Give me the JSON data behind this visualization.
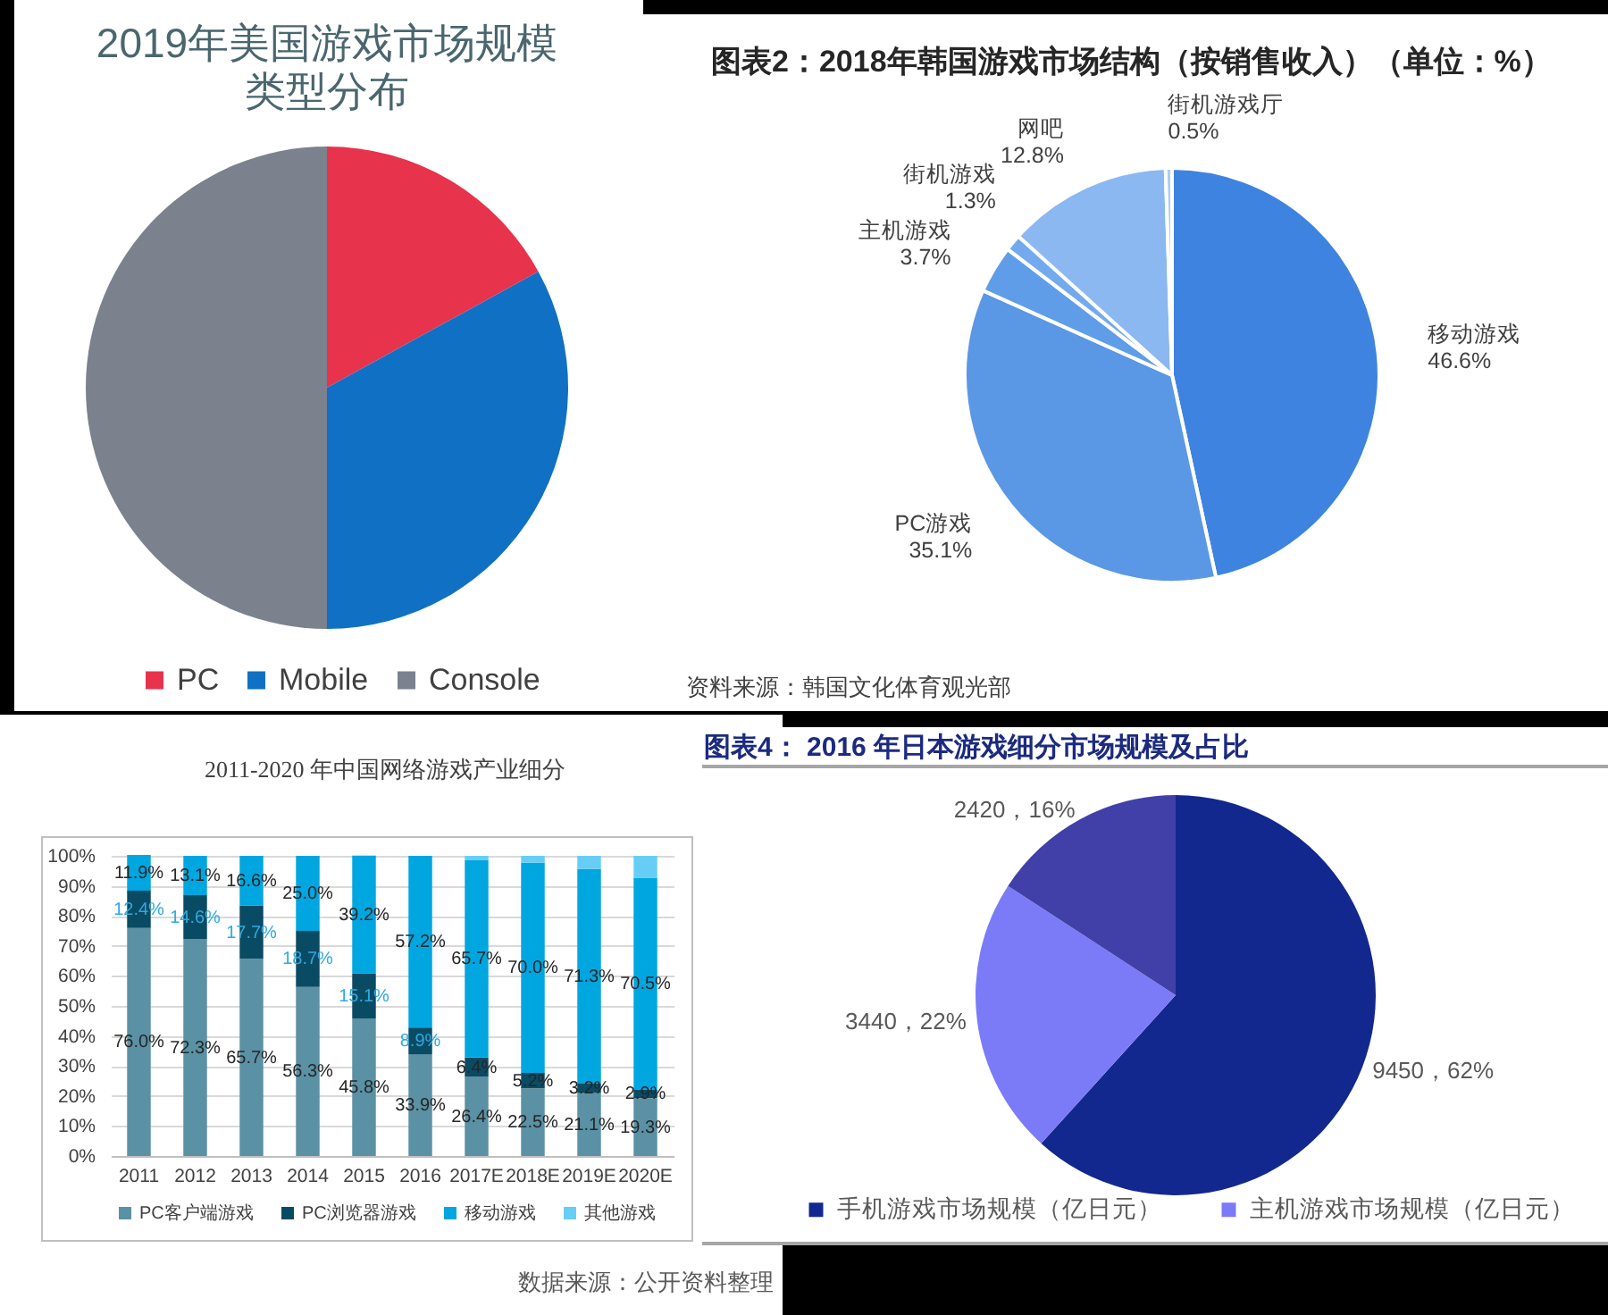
{
  "chart_data": [
    {
      "type": "pie",
      "title": "2019年美国游戏市场规模类型分布",
      "categories": [
        "PC",
        "Mobile",
        "Console"
      ],
      "values": [
        17,
        33,
        50
      ],
      "colors": [
        "#e8334d",
        "#1070c4",
        "#7b818d"
      ],
      "legend": "bottom"
    },
    {
      "type": "pie",
      "title": "图表2：2018年韩国游戏市场结构（按销售收入）（单位：%）",
      "categories": [
        "移动游戏",
        "PC游戏",
        "主机游戏",
        "街机游戏",
        "网吧",
        "街机游戏厅"
      ],
      "values": [
        46.6,
        35.1,
        3.7,
        1.3,
        12.8,
        0.5
      ],
      "colors": [
        "#3f83e0",
        "#5a98e6",
        "#5f9de8",
        "#73aaed",
        "#8bb8f0",
        "#a9ccf4"
      ],
      "value_labels": [
        "46.6%",
        "35.1%",
        "3.7%",
        "1.3%",
        "12.8%",
        "0.5%"
      ],
      "annotations": [
        "资料来源：韩国文化体育观光部"
      ]
    },
    {
      "type": "bar",
      "stacked": true,
      "title": "2011-2020 年中国网络游戏产业细分",
      "categories": [
        "2011",
        "2012",
        "2013",
        "2014",
        "2015",
        "2016",
        "2017E",
        "2018E",
        "2019E",
        "2020E"
      ],
      "series": [
        {
          "name": "PC客户端游戏",
          "color": "#5a91a5",
          "values": [
            76.0,
            72.3,
            65.7,
            56.3,
            45.8,
            33.9,
            26.4,
            22.5,
            21.1,
            19.3
          ],
          "value_labels": [
            "76.0%",
            "72.3%",
            "65.7%",
            "56.3%",
            "45.8%",
            "33.9%",
            "26.4%",
            "22.5%",
            "21.1%",
            "19.3%"
          ]
        },
        {
          "name": "PC浏览器游戏",
          "color": "#0a4b64",
          "values": [
            12.4,
            14.6,
            17.7,
            18.7,
            15.1,
            8.9,
            6.4,
            5.2,
            3.2,
            2.9
          ],
          "value_labels": [
            "12.4%",
            "14.6%",
            "17.7%",
            "18.7%",
            "15.1%",
            "8.9%",
            "6.4%",
            "5.2%",
            "3.2%",
            "2.9%"
          ]
        },
        {
          "name": "移动游戏",
          "color": "#00a6e0",
          "values": [
            11.9,
            13.1,
            16.6,
            25.0,
            39.2,
            57.2,
            65.7,
            70.0,
            71.3,
            70.5
          ],
          "value_labels": [
            "11.9%",
            "13.1%",
            "16.6%",
            "25.0%",
            "39.2%",
            "57.2%",
            "65.7%",
            "70.0%",
            "71.3%",
            "70.5%"
          ]
        },
        {
          "name": "其他游戏",
          "color": "#66cef5",
          "values": [
            0,
            0,
            0,
            0,
            0,
            0,
            1.5,
            2.3,
            4.4,
            7.3
          ]
        }
      ],
      "ylim": [
        0,
        100
      ],
      "yticks": [
        {
          "value": 0,
          "label": "0%"
        },
        {
          "value": 10,
          "label": "10%"
        },
        {
          "value": 20,
          "label": "20%"
        },
        {
          "value": 30,
          "label": "30%"
        },
        {
          "value": 40,
          "label": "40%"
        },
        {
          "value": 50,
          "label": "50%"
        },
        {
          "value": 60,
          "label": "60%"
        },
        {
          "value": 70,
          "label": "70%"
        },
        {
          "value": 80,
          "label": "80%"
        },
        {
          "value": 90,
          "label": "90%"
        },
        {
          "value": 100,
          "label": "100%"
        }
      ],
      "grid": "y",
      "legend": "bottom",
      "annotations": [
        "数据来源：公开资料整理"
      ]
    },
    {
      "type": "pie",
      "title": "图表4： 2016 年日本游戏细分市场规模及占比",
      "categories": [
        "手机游戏市场规模（亿日元）",
        "主机游戏市场规模（亿日元）",
        null
      ],
      "values": [
        9450,
        3440,
        2420
      ],
      "colors": [
        "#12288e",
        "#7b7bf7",
        "#4140a8"
      ],
      "value_labels": [
        "9450，62%",
        "3440，22%",
        "2420，16%"
      ],
      "legend": "bottom"
    }
  ]
}
